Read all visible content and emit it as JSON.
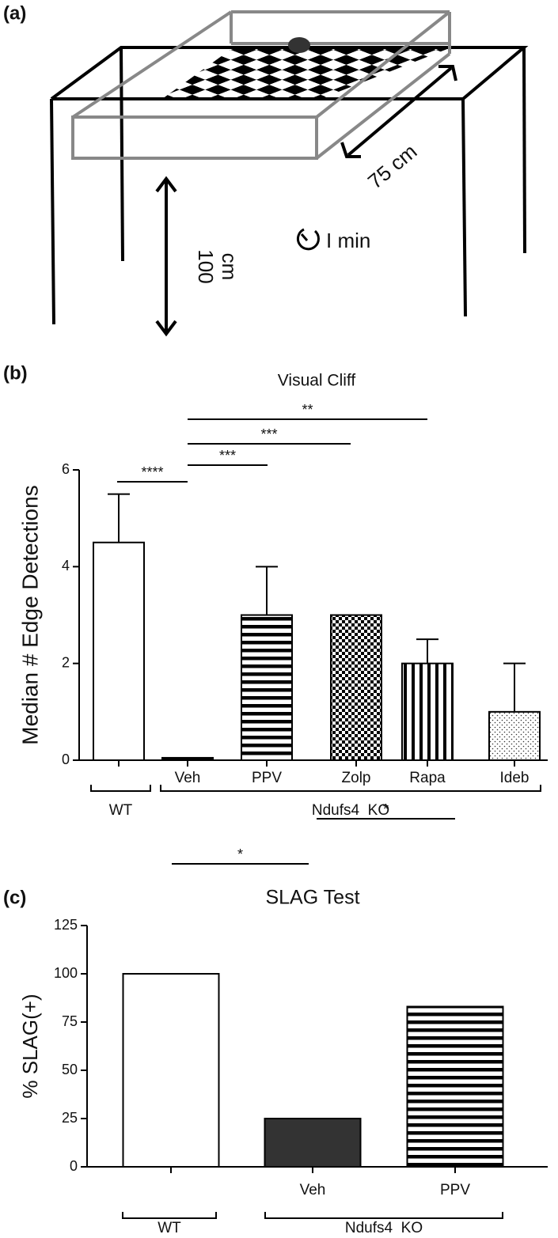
{
  "diagram": {
    "label": "(a)",
    "distance": "75 cm",
    "height": [
      "100",
      "cm"
    ],
    "time": "I min"
  },
  "chart_data": [
    {
      "type": "bar",
      "panel_label": "(b)",
      "title": "Visual Cliff",
      "y_label": "Median # Edge Detections",
      "categories": [
        null,
        "Veh",
        "PPV",
        "Zolp",
        "Rapa",
        "Ideb"
      ],
      "values": [
        4.5,
        0.05,
        3,
        3,
        2,
        1
      ],
      "errors": [
        1,
        null,
        1,
        null,
        0.5,
        1
      ],
      "fills": [
        "white",
        "black",
        "horizontal-stripes",
        "checker",
        "vertical-stripes",
        "dots"
      ],
      "groups": [
        "WT",
        "Ndufs4  KO"
      ],
      "annotations": [
        "****",
        "***",
        "***",
        "**"
      ],
      "ylim": [
        0,
        6
      ],
      "yticks": [
        0,
        2,
        4,
        6
      ]
    },
    {
      "type": "bar",
      "panel_label": "(c)",
      "title": "SLAG Test",
      "y_label": "% SLAG(+)",
      "categories": [
        null,
        "Veh",
        "PPV"
      ],
      "values": [
        100,
        25,
        83
      ],
      "fills": [
        "white",
        "dark",
        "horizontal-stripes"
      ],
      "groups": [
        "WT",
        "Ndufs4  KO"
      ],
      "annotations": [
        "*",
        "*"
      ],
      "ylim": [
        0,
        125
      ],
      "yticks": [
        0,
        25,
        50,
        75,
        100,
        125
      ]
    }
  ]
}
